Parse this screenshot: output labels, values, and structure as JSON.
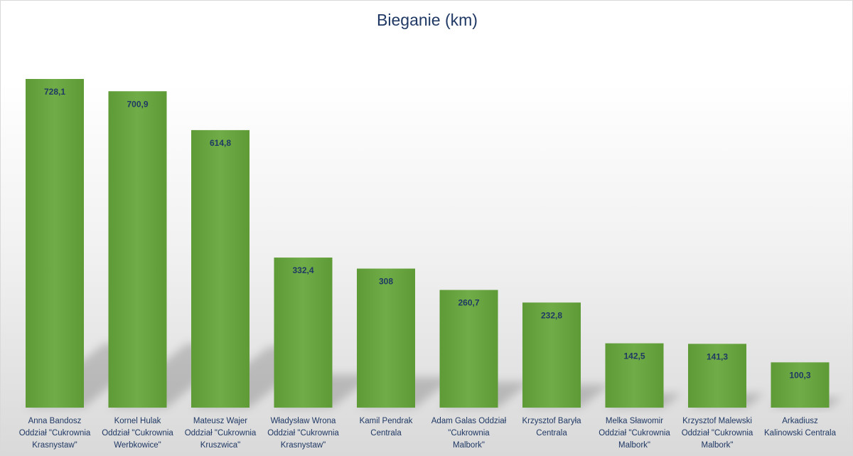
{
  "chart_data": {
    "type": "bar",
    "title": "Bieganie (km)",
    "xlabel": "",
    "ylabel": "",
    "ylim": [
      0,
      728.1
    ],
    "grid": false,
    "legend": "none",
    "bar_color": "#6aa53f",
    "label_color": "#1f3864",
    "categories": [
      [
        "Anna Bandosz",
        "Oddział \"Cukrownia",
        "Krasnystaw\""
      ],
      [
        "Kornel Hulak",
        "Oddział \"Cukrownia",
        "Werbkowice\""
      ],
      [
        "Mateusz Wajer",
        "Oddział \"Cukrownia",
        "Kruszwica\""
      ],
      [
        "Władysław Wrona",
        "Oddział \"Cukrownia",
        "Krasnystaw\""
      ],
      [
        "Kamil Pendrak",
        "Centrala"
      ],
      [
        "Adam Galas Oddział",
        "\"Cukrownia",
        "Malbork\""
      ],
      [
        "Krzysztof Baryła",
        "Centrala"
      ],
      [
        "Melka Sławomir",
        "Oddział \"Cukrownia",
        "Malbork\""
      ],
      [
        "Krzysztof Malewski",
        "Oddział \"Cukrownia",
        "Malbork\""
      ],
      [
        "Arkadiusz",
        "Kalinowski Centrala"
      ]
    ],
    "values": [
      728.1,
      700.9,
      614.8,
      332.4,
      308,
      260.7,
      232.8,
      142.5,
      141.3,
      100.3
    ],
    "value_labels": [
      "728,1",
      "700,9",
      "614,8",
      "332,4",
      "308",
      "260,7",
      "232,8",
      "142,5",
      "141,3",
      "100,3"
    ]
  }
}
